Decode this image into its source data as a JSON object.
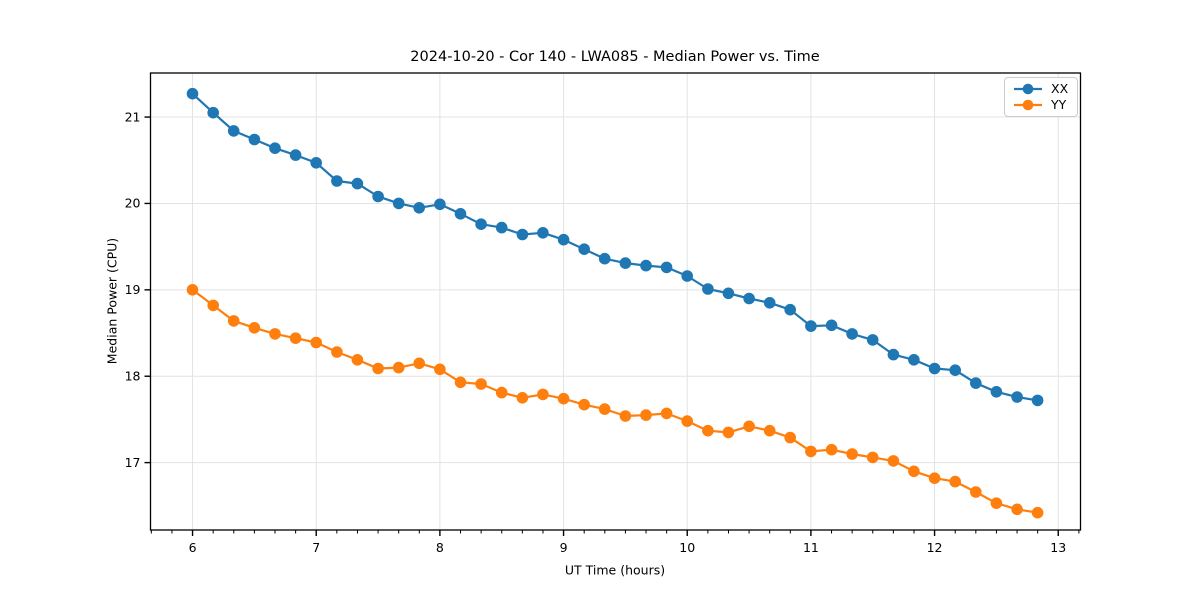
{
  "figure": {
    "background": "#ffffff"
  },
  "chart_data": {
    "type": "line",
    "title": "2024-10-20 - Cor 140 - LWA085 - Median Power vs. Time",
    "xlabel": "UT Time (hours)",
    "ylabel": "Median Power (CPU)",
    "x": [
      6.0,
      6.167,
      6.333,
      6.5,
      6.667,
      6.833,
      7.0,
      7.167,
      7.333,
      7.5,
      7.667,
      7.833,
      8.0,
      8.167,
      8.333,
      8.5,
      8.667,
      8.833,
      9.0,
      9.167,
      9.333,
      9.5,
      9.667,
      9.833,
      10.0,
      10.167,
      10.333,
      10.5,
      10.667,
      10.833,
      11.0,
      11.167,
      11.333,
      11.5,
      11.667,
      11.833,
      12.0,
      12.167,
      12.333,
      12.5,
      12.667,
      12.833
    ],
    "series": [
      {
        "name": "XX",
        "color": "#1f77b4",
        "marker": "circle",
        "values": [
          21.27,
          21.05,
          20.84,
          20.74,
          20.64,
          20.56,
          20.47,
          20.26,
          20.23,
          20.08,
          20.0,
          19.95,
          19.99,
          19.88,
          19.76,
          19.72,
          19.64,
          19.66,
          19.58,
          19.47,
          19.36,
          19.31,
          19.28,
          19.26,
          19.16,
          19.01,
          18.96,
          18.9,
          18.85,
          18.77,
          18.58,
          18.59,
          18.49,
          18.42,
          18.25,
          18.19,
          18.09,
          18.07,
          17.92,
          17.82,
          17.76,
          17.72
        ]
      },
      {
        "name": "YY",
        "color": "#ff7f0e",
        "marker": "circle",
        "values": [
          19.0,
          18.82,
          18.64,
          18.56,
          18.49,
          18.44,
          18.39,
          18.28,
          18.19,
          18.09,
          18.1,
          18.15,
          18.08,
          17.93,
          17.91,
          17.81,
          17.75,
          17.79,
          17.74,
          17.67,
          17.62,
          17.54,
          17.55,
          17.57,
          17.48,
          17.37,
          17.35,
          17.42,
          17.37,
          17.29,
          17.13,
          17.15,
          17.1,
          17.06,
          17.02,
          16.9,
          16.82,
          16.78,
          16.66,
          16.53,
          16.46,
          16.42
        ]
      }
    ],
    "x_ticks": [
      6,
      7,
      8,
      9,
      10,
      11,
      12,
      13
    ],
    "y_ticks": [
      17,
      18,
      19,
      20,
      21
    ],
    "xlim": [
      5.66,
      13.18
    ],
    "ylim": [
      16.22,
      21.51
    ],
    "minor_tick_step_x": 0.16667,
    "grid": true,
    "grid_color": "#e3e3e3",
    "legend_position": "upper right"
  }
}
